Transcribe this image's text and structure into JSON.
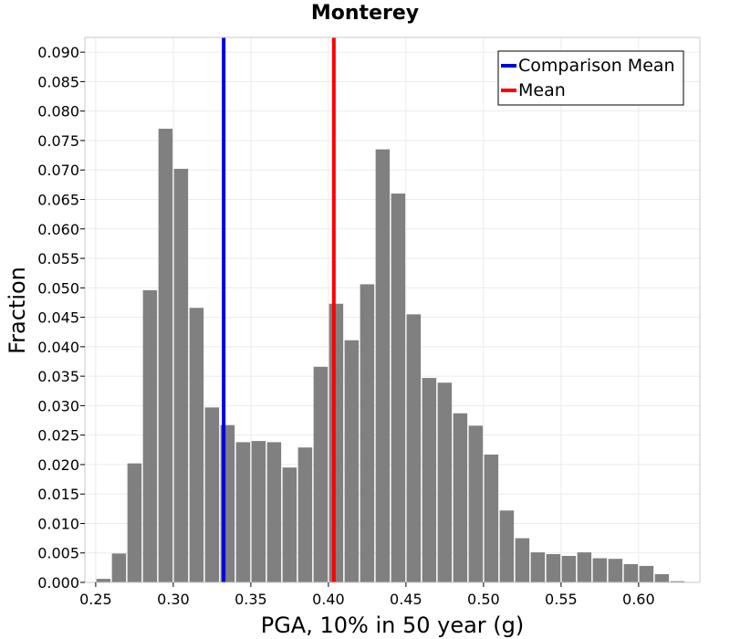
{
  "chart_data": {
    "type": "bar",
    "title": "Monterey",
    "xlabel": "PGA, 10% in 50 year (g)",
    "ylabel": "Fraction",
    "xlim": [
      0.243,
      0.6395
    ],
    "ylim": [
      0,
      0.0925
    ],
    "xticks": [
      "0.25",
      "0.30",
      "0.35",
      "0.40",
      "0.45",
      "0.50",
      "0.55",
      "0.60"
    ],
    "yticks": [
      "0.000",
      "0.005",
      "0.010",
      "0.015",
      "0.020",
      "0.025",
      "0.030",
      "0.035",
      "0.040",
      "0.045",
      "0.050",
      "0.055",
      "0.060",
      "0.065",
      "0.070",
      "0.075",
      "0.080",
      "0.085",
      "0.090"
    ],
    "bin_width": 0.01,
    "bins": [
      {
        "x": 0.255,
        "value": 0.0006
      },
      {
        "x": 0.265,
        "value": 0.0049
      },
      {
        "x": 0.275,
        "value": 0.0202
      },
      {
        "x": 0.285,
        "value": 0.0496
      },
      {
        "x": 0.295,
        "value": 0.077
      },
      {
        "x": 0.305,
        "value": 0.0702
      },
      {
        "x": 0.315,
        "value": 0.0466
      },
      {
        "x": 0.325,
        "value": 0.0297
      },
      {
        "x": 0.335,
        "value": 0.0267
      },
      {
        "x": 0.345,
        "value": 0.0238
      },
      {
        "x": 0.355,
        "value": 0.024
      },
      {
        "x": 0.365,
        "value": 0.0238
      },
      {
        "x": 0.375,
        "value": 0.0195
      },
      {
        "x": 0.385,
        "value": 0.0229
      },
      {
        "x": 0.395,
        "value": 0.0366
      },
      {
        "x": 0.405,
        "value": 0.0473
      },
      {
        "x": 0.415,
        "value": 0.0411
      },
      {
        "x": 0.425,
        "value": 0.0506
      },
      {
        "x": 0.435,
        "value": 0.0735
      },
      {
        "x": 0.445,
        "value": 0.066
      },
      {
        "x": 0.455,
        "value": 0.0455
      },
      {
        "x": 0.465,
        "value": 0.0347
      },
      {
        "x": 0.475,
        "value": 0.0339
      },
      {
        "x": 0.485,
        "value": 0.0287
      },
      {
        "x": 0.495,
        "value": 0.0266
      },
      {
        "x": 0.505,
        "value": 0.0217
      },
      {
        "x": 0.515,
        "value": 0.0122
      },
      {
        "x": 0.525,
        "value": 0.0075
      },
      {
        "x": 0.535,
        "value": 0.0051
      },
      {
        "x": 0.545,
        "value": 0.0048
      },
      {
        "x": 0.555,
        "value": 0.0045
      },
      {
        "x": 0.565,
        "value": 0.0051
      },
      {
        "x": 0.575,
        "value": 0.0041
      },
      {
        "x": 0.585,
        "value": 0.004
      },
      {
        "x": 0.595,
        "value": 0.0031
      },
      {
        "x": 0.605,
        "value": 0.0028
      },
      {
        "x": 0.615,
        "value": 0.0014
      },
      {
        "x": 0.625,
        "value": 0.0002
      }
    ],
    "vlines": [
      {
        "name": "Comparison Mean",
        "x": 0.3325,
        "color": "#0000dd"
      },
      {
        "name": "Mean",
        "x": 0.4035,
        "color": "#ff0000"
      }
    ],
    "bar_color": "#808080",
    "grid": true,
    "legend_position": "top-right"
  }
}
